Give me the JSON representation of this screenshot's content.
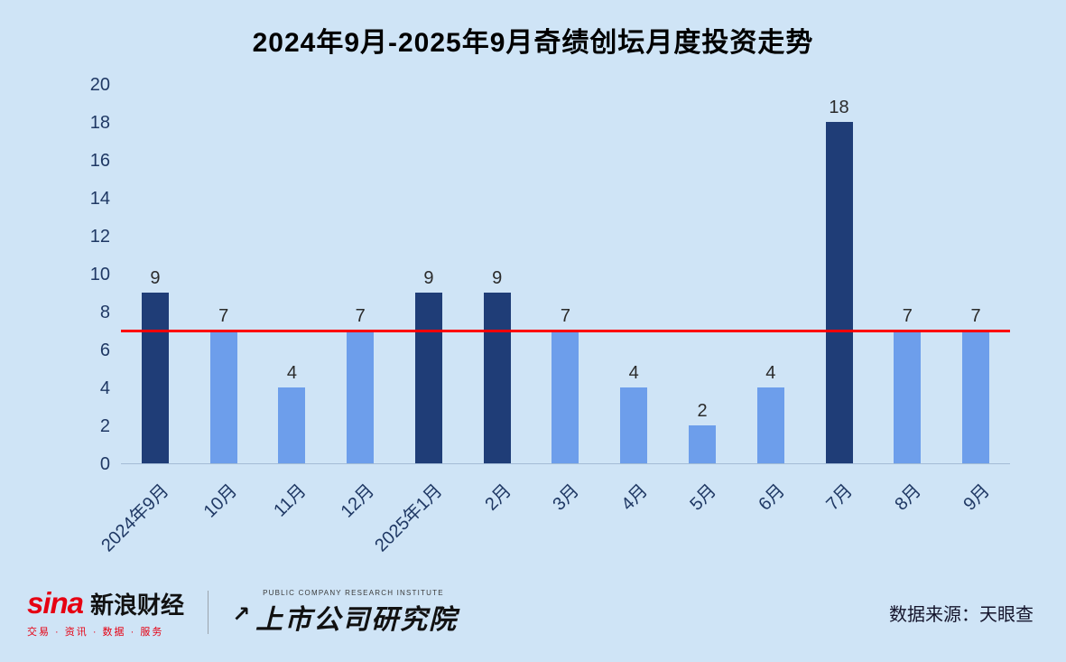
{
  "title": "2024年9月-2025年9月奇绩创坛月度投资走势",
  "chart_data": {
    "type": "bar",
    "title": "2024年9月-2025年9月奇绩创坛月度投资走势",
    "categories": [
      "2024年9月",
      "10月",
      "11月",
      "12月",
      "2025年1月",
      "2月",
      "3月",
      "4月",
      "5月",
      "6月",
      "7月",
      "8月",
      "9月"
    ],
    "values": [
      9,
      7,
      4,
      7,
      9,
      9,
      7,
      4,
      2,
      4,
      18,
      7,
      7
    ],
    "xlabel": "",
    "ylabel": "",
    "ylim": [
      0,
      20
    ],
    "ytick_step": 2,
    "reference_line": 7,
    "grid": false,
    "legend": "none",
    "colors": {
      "background": "#cfe4f6",
      "bar_above_reference": "#1f3d77",
      "bar_normal": "#6d9eeb",
      "reference_line": "#ff0000",
      "axis_text": "#1f3864"
    }
  },
  "footer": {
    "sina_logo": "sina",
    "sina_brand": "新浪财经",
    "sina_tagline": "交易 · 资讯 · 数据 · 服务",
    "institute_subtitle": "PUBLIC COMPANY RESEARCH INSTITUTE",
    "institute_name": "上市公司研究院",
    "arrow_icon": "↗",
    "data_source": "数据来源：天眼查"
  }
}
